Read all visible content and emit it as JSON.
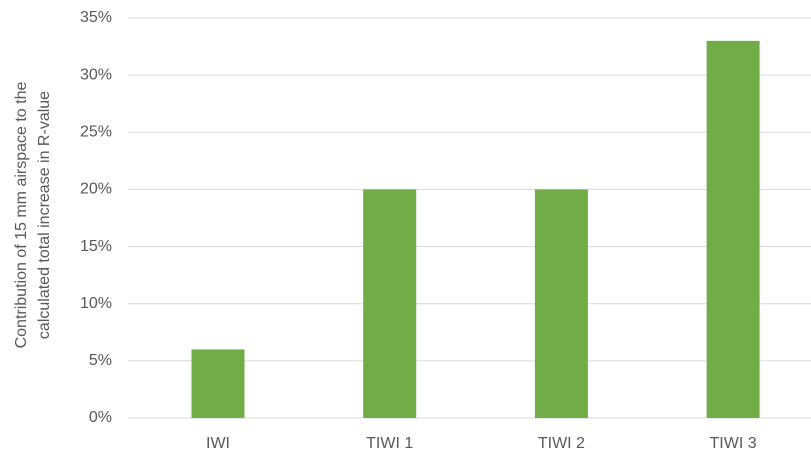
{
  "chart_data": {
    "type": "bar",
    "y_label": [
      "Contribution of 15 mm airspace to the",
      "calculated total increase in R-value"
    ],
    "categories": [
      "IWI",
      "TIWI 1",
      "TIWI 2",
      "TIWI 3"
    ],
    "values": [
      6,
      20,
      20,
      33
    ],
    "color": "#70ad47",
    "ylim": [
      0,
      35
    ],
    "yticks": [
      {
        "value": 0,
        "label": "0%"
      },
      {
        "value": 5,
        "label": "5%"
      },
      {
        "value": 10,
        "label": "10%"
      },
      {
        "value": 15,
        "label": "15%"
      },
      {
        "value": 20,
        "label": "20%"
      },
      {
        "value": 25,
        "label": "25%"
      },
      {
        "value": 30,
        "label": "30%"
      },
      {
        "value": 35,
        "label": "35%"
      }
    ],
    "grid": true
  }
}
